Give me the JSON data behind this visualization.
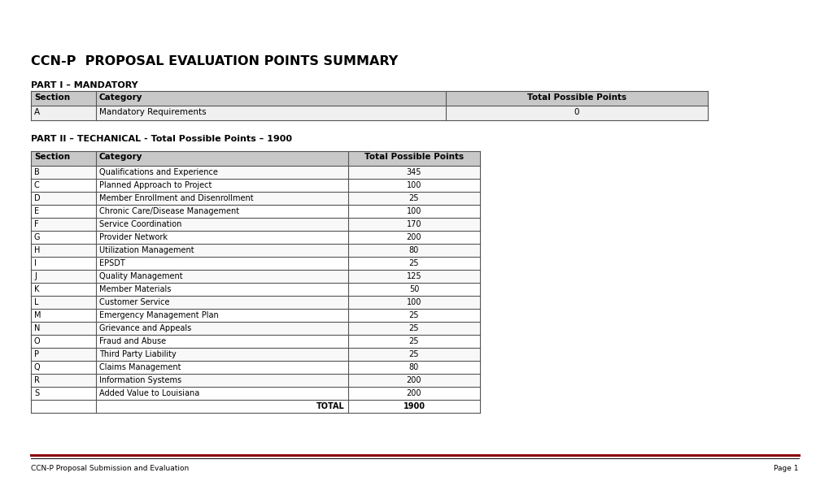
{
  "title": "CCN-P  PROPOSAL EVALUATION POINTS SUMMARY",
  "part1_label": "PART I – MANDATORY",
  "part1_header": [
    "Section",
    "Category",
    "Total Possible Points"
  ],
  "part1_rows": [
    [
      "A",
      "Mandatory Requirements",
      "0"
    ]
  ],
  "part2_label": "PART II – TECHANICAL - Total Possible Points – 1900",
  "part2_header": [
    "Section",
    "Category",
    "Total Possible Points"
  ],
  "part2_rows": [
    [
      "B",
      "Qualifications and Experience",
      "345"
    ],
    [
      "C",
      "Planned Approach to Project",
      "100"
    ],
    [
      "D",
      "Member Enrollment and Disenrollment",
      "25"
    ],
    [
      "E",
      "Chronic Care/Disease Management",
      "100"
    ],
    [
      "F",
      "Service Coordination",
      "170"
    ],
    [
      "G",
      "Provider Network",
      "200"
    ],
    [
      "H",
      "Utilization Management",
      "80"
    ],
    [
      "I",
      "EPSDT",
      "25"
    ],
    [
      "J",
      "Quality Management",
      "125"
    ],
    [
      "K",
      "Member Materials",
      "50"
    ],
    [
      "L",
      "Customer Service",
      "100"
    ],
    [
      "M",
      "Emergency Management Plan",
      "25"
    ],
    [
      "N",
      "Grievance and Appeals",
      "25"
    ],
    [
      "O",
      "Fraud and Abuse",
      "25"
    ],
    [
      "P",
      "Third Party Liability",
      "25"
    ],
    [
      "Q",
      "Claims Management",
      "80"
    ],
    [
      "R",
      "Information Systems",
      "200"
    ],
    [
      "S",
      "Added Value to Louisiana",
      "200"
    ]
  ],
  "part2_total": [
    "",
    "TOTAL",
    "1900"
  ],
  "footer_left": "CCN-P Proposal Submission and Evaluation",
  "footer_right": "Page 1",
  "bg_color": "#ffffff",
  "header_bg": "#c8c8c8",
  "border_color": "#555555",
  "title_color": "#000000",
  "footer_line_red": "#8b0000",
  "footer_line_black": "#000000"
}
